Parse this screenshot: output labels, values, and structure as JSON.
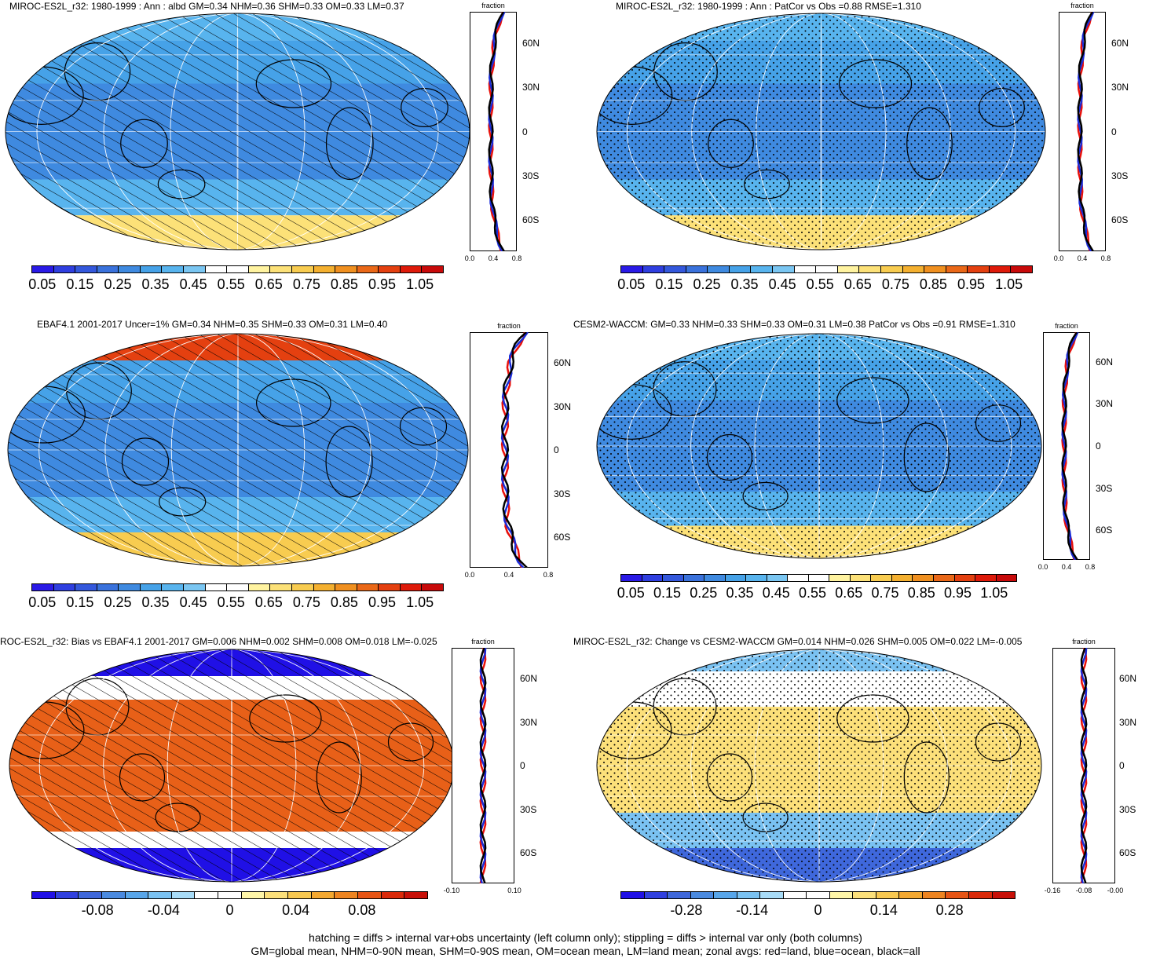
{
  "panels": [
    {
      "title": "MIROC-ES2L_r32: 1980-1999 : Ann : albd GM=0.34 NHM=0.36 SHM=0.33 OM=0.33 LM=0.37",
      "pattern": "hatch",
      "colorbar": [
        "0.05",
        "0.15",
        "0.25",
        "0.35",
        "0.45",
        "0.55",
        "0.65",
        "0.75",
        "0.85",
        "0.95",
        "1.05"
      ],
      "zonal_label": "fraction",
      "zonal_ticks": [
        "0.0",
        "0.4",
        "0.8"
      ],
      "lat_labels": [
        "60N",
        "30N",
        "0",
        "30S",
        "60S"
      ]
    },
    {
      "title": "MIROC-ES2L_r32: 1980-1999 : Ann : PatCor vs Obs =0.88 RMSE=1.310",
      "pattern": "stipple",
      "colorbar": [
        "0.05",
        "0.15",
        "0.25",
        "0.35",
        "0.45",
        "0.55",
        "0.65",
        "0.75",
        "0.85",
        "0.95",
        "1.05"
      ],
      "zonal_label": "fraction",
      "zonal_ticks": [
        "0.0",
        "0.4",
        "0.8"
      ],
      "lat_labels": [
        "60N",
        "30N",
        "0",
        "30S",
        "60S"
      ]
    },
    {
      "title": "EBAF4.1 2001-2017 Uncer=1% GM=0.34 NHM=0.35 SHM=0.33 OM=0.31 LM=0.40",
      "pattern": "hatch",
      "colorbar": [
        "0.05",
        "0.15",
        "0.25",
        "0.35",
        "0.45",
        "0.55",
        "0.65",
        "0.75",
        "0.85",
        "0.95",
        "1.05"
      ],
      "zonal_label": "fraction",
      "zonal_ticks": [
        "0.0",
        "0.4",
        "0.8"
      ],
      "lat_labels": [
        "60N",
        "30N",
        "0",
        "30S",
        "60S"
      ]
    },
    {
      "title": "CESM2-WACCM: GM=0.33 NHM=0.33 SHM=0.33 OM=0.31 LM=0.38 PatCor vs Obs =0.91 RMSE=1.310",
      "pattern": "stipple",
      "colorbar": [
        "0.05",
        "0.15",
        "0.25",
        "0.35",
        "0.45",
        "0.55",
        "0.65",
        "0.75",
        "0.85",
        "0.95",
        "1.05"
      ],
      "zonal_label": "fraction",
      "zonal_ticks": [
        "0.0",
        "0.4",
        "0.8"
      ],
      "lat_labels": [
        "60N",
        "30N",
        "0",
        "30S",
        "60S"
      ]
    },
    {
      "title": "ROC-ES2L_r32: Bias vs EBAF4.1 2001-2017 GM=0.006 NHM=0.002 SHM=0.008 OM=0.018 LM=-0.025",
      "pattern": "hatch",
      "colorbar": [
        "-0.08",
        "-0.04",
        "0",
        "0.04",
        "0.08"
      ],
      "zonal_label": "fraction",
      "zonal_ticks": [
        "-0.10",
        "0.10"
      ],
      "lat_labels": [
        "60N",
        "30N",
        "0",
        "30S",
        "60S"
      ]
    },
    {
      "title": "MIROC-ES2L_r32: Change vs CESM2-WACCM GM=0.014 NHM=0.026 SHM=0.005 OM=0.022 LM=-0.005",
      "pattern": "stipple",
      "colorbar": [
        "-0.28",
        "-0.14",
        "0",
        "0.14",
        "0.28"
      ],
      "zonal_label": "fraction",
      "zonal_ticks": [
        "-0.16",
        "-0.08",
        "-0.00"
      ],
      "lat_labels": [
        "60N",
        "30N",
        "0",
        "30S",
        "60S"
      ]
    }
  ],
  "colors": {
    "seq": [
      "#2a1ae6",
      "#2f3fe0",
      "#3458dc",
      "#3a72dc",
      "#3f8ae0",
      "#46a2e8",
      "#58b4ee",
      "#7ac6f2",
      "#ffffff",
      "#ffffff",
      "#fff3a0",
      "#fce178",
      "#f8cc50",
      "#f4b030",
      "#f09020",
      "#ea6818",
      "#e44010",
      "#de1a0a",
      "#c80a0a"
    ],
    "div": [
      "#2010e6",
      "#3040e0",
      "#3f68dc",
      "#4a8ae0",
      "#58a6ea",
      "#7ac2f2",
      "#a8dcf8",
      "#ffffff",
      "#ffffff",
      "#fff6a8",
      "#fce07a",
      "#f8c850",
      "#f4a830",
      "#ee8420",
      "#e65414",
      "#dc2a0a",
      "#c81008"
    ],
    "zonal_land": "#e8100a",
    "zonal_ocean": "#1a2cd8",
    "zonal_all": "#000000"
  },
  "footer": {
    "line1": "hatching = diffs > internal var+obs uncertainty (left column only); stippling = diffs > internal var only (both columns)",
    "line2": "GM=global mean, NHM=0-90N mean, SHM=0-90S mean, OM=ocean mean, LM=land mean; zonal avgs: red=land, blue=ocean, black=all"
  }
}
